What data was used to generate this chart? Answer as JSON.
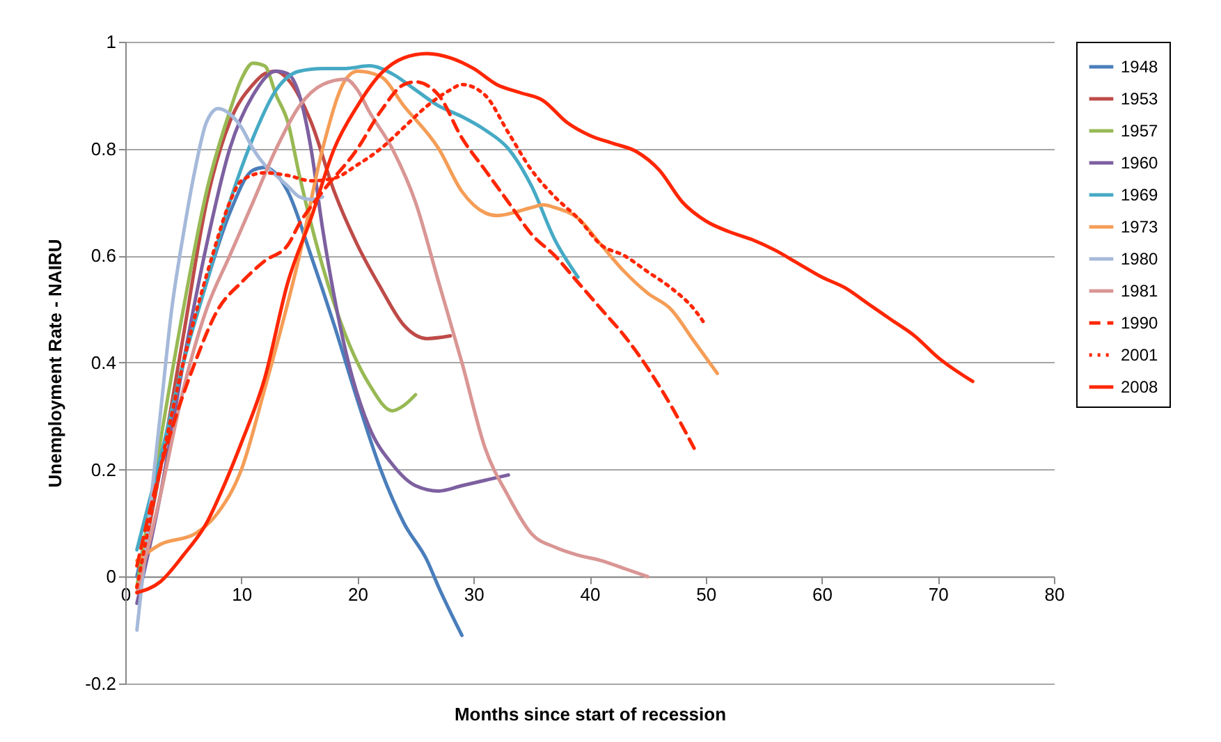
{
  "chart_data": {
    "type": "line",
    "xlabel": "Months since start of recession",
    "ylabel": "Unemployment Rate - NAIRU",
    "xlim": [
      0,
      80
    ],
    "xticks": [
      0,
      10,
      20,
      30,
      40,
      50,
      60,
      70,
      80
    ],
    "ylim": [
      -0.2,
      1
    ],
    "yticks": [
      -0.2,
      0,
      0.2,
      0.4,
      0.6,
      0.8,
      1
    ],
    "grid": "y",
    "legend": "right",
    "series": [
      {
        "name": "1948",
        "color": "#4a7ebb",
        "x": [
          1,
          3,
          5,
          7,
          9,
          11,
          12,
          14,
          16,
          18,
          20,
          22,
          24,
          26,
          27,
          29
        ],
        "values": [
          0.0,
          0.2,
          0.4,
          0.55,
          0.68,
          0.76,
          0.765,
          0.72,
          0.6,
          0.47,
          0.33,
          0.2,
          0.1,
          0.03,
          -0.02,
          -0.11
        ]
      },
      {
        "name": "1953",
        "color": "#be4b48",
        "x": [
          1,
          3,
          5,
          7,
          9,
          11,
          12,
          13,
          14,
          16,
          18,
          20,
          22,
          24,
          26,
          28
        ],
        "values": [
          -0.02,
          0.2,
          0.45,
          0.7,
          0.85,
          0.92,
          0.94,
          0.945,
          0.93,
          0.85,
          0.72,
          0.62,
          0.54,
          0.47,
          0.445,
          0.45
        ]
      },
      {
        "name": "1957",
        "color": "#98b954",
        "x": [
          1,
          3,
          5,
          7,
          9,
          10,
          11,
          12,
          13,
          14,
          15,
          16,
          17,
          19,
          21,
          23,
          24,
          25
        ],
        "values": [
          -0.02,
          0.25,
          0.5,
          0.72,
          0.87,
          0.93,
          0.96,
          0.955,
          0.9,
          0.85,
          0.75,
          0.66,
          0.58,
          0.45,
          0.36,
          0.31,
          0.32,
          0.34
        ]
      },
      {
        "name": "1960",
        "color": "#7d60a0",
        "x": [
          1,
          3,
          5,
          7,
          9,
          11,
          13,
          14,
          15,
          16,
          17,
          19,
          21,
          23,
          25,
          27,
          29,
          31,
          33
        ],
        "values": [
          -0.05,
          0.15,
          0.4,
          0.62,
          0.8,
          0.9,
          0.945,
          0.94,
          0.9,
          0.8,
          0.65,
          0.42,
          0.28,
          0.21,
          0.17,
          0.16,
          0.17,
          0.18,
          0.19
        ]
      },
      {
        "name": "1969",
        "color": "#46aac5",
        "x": [
          1,
          3,
          5,
          7,
          9,
          11,
          13,
          15,
          17,
          19,
          21,
          23,
          25,
          27,
          29,
          31,
          33,
          35,
          37,
          39
        ],
        "values": [
          0.05,
          0.22,
          0.4,
          0.55,
          0.7,
          0.82,
          0.91,
          0.945,
          0.95,
          0.95,
          0.955,
          0.94,
          0.91,
          0.88,
          0.86,
          0.835,
          0.8,
          0.73,
          0.63,
          0.56
        ]
      },
      {
        "name": "1973",
        "color": "#f59d56",
        "x": [
          1,
          3,
          6,
          8,
          10,
          12,
          15,
          17,
          19,
          20,
          22,
          24,
          27,
          29,
          31,
          32,
          35,
          36,
          37,
          39,
          41,
          43,
          45,
          47,
          49,
          51
        ],
        "values": [
          0.03,
          0.06,
          0.08,
          0.12,
          0.2,
          0.35,
          0.6,
          0.8,
          0.93,
          0.945,
          0.935,
          0.88,
          0.8,
          0.72,
          0.68,
          0.675,
          0.69,
          0.695,
          0.69,
          0.67,
          0.62,
          0.57,
          0.53,
          0.5,
          0.44,
          0.38
        ]
      },
      {
        "name": "1980",
        "color": "#a5b9da",
        "x": [
          1,
          2,
          3,
          4,
          5,
          6,
          7,
          8,
          9,
          10,
          11,
          12,
          13,
          14,
          15,
          16,
          17
        ],
        "values": [
          -0.1,
          0.1,
          0.3,
          0.5,
          0.64,
          0.76,
          0.85,
          0.875,
          0.865,
          0.84,
          0.8,
          0.77,
          0.75,
          0.73,
          0.71,
          0.705,
          0.71
        ]
      },
      {
        "name": "1981",
        "color": "#d99694",
        "x": [
          1,
          3,
          5,
          7,
          9,
          11,
          13,
          15,
          17,
          19,
          20,
          21,
          23,
          25,
          27,
          29,
          31,
          33,
          35,
          37,
          39,
          41,
          43,
          45
        ],
        "values": [
          -0.03,
          0.15,
          0.35,
          0.5,
          0.6,
          0.7,
          0.8,
          0.88,
          0.92,
          0.93,
          0.91,
          0.87,
          0.8,
          0.7,
          0.55,
          0.4,
          0.24,
          0.15,
          0.08,
          0.055,
          0.04,
          0.03,
          0.015,
          0
        ]
      },
      {
        "name": "1990",
        "color": "#ff2600",
        "line_style": "dashed",
        "x": [
          1,
          3,
          6,
          8,
          10,
          12,
          14,
          15,
          17,
          20,
          22,
          24,
          25,
          27,
          29,
          31,
          33,
          35,
          37,
          39,
          41,
          43,
          45,
          47,
          49
        ],
        "values": [
          0.02,
          0.2,
          0.4,
          0.5,
          0.55,
          0.59,
          0.62,
          0.66,
          0.72,
          0.8,
          0.87,
          0.92,
          0.925,
          0.9,
          0.82,
          0.76,
          0.7,
          0.64,
          0.6,
          0.55,
          0.5,
          0.45,
          0.39,
          0.32,
          0.24
        ]
      },
      {
        "name": "2001",
        "color": "#ff2600",
        "line_style": "dotted",
        "x": [
          1,
          3,
          5,
          7.5,
          9,
          10,
          12,
          14,
          16,
          18,
          20,
          22,
          24,
          26,
          28,
          29,
          31,
          33,
          35,
          37,
          39,
          41,
          43,
          45,
          47,
          49,
          50
        ],
        "values": [
          -0.02,
          0.2,
          0.4,
          0.6,
          0.7,
          0.74,
          0.755,
          0.75,
          0.74,
          0.745,
          0.77,
          0.8,
          0.84,
          0.88,
          0.91,
          0.92,
          0.9,
          0.83,
          0.76,
          0.71,
          0.67,
          0.62,
          0.6,
          0.57,
          0.54,
          0.5,
          0.47
        ]
      },
      {
        "name": "2008",
        "color": "#ff2600",
        "x": [
          1,
          3,
          5,
          7,
          8.5,
          10,
          12,
          14,
          16,
          18,
          20,
          22,
          24,
          26,
          28,
          30,
          32,
          34,
          36,
          38,
          40,
          42,
          44,
          46,
          48,
          50,
          52,
          54,
          56,
          58,
          60,
          62,
          64,
          66,
          68,
          70,
          73
        ],
        "values": [
          -0.03,
          -0.01,
          0.04,
          0.1,
          0.17,
          0.25,
          0.37,
          0.55,
          0.67,
          0.8,
          0.88,
          0.94,
          0.97,
          0.978,
          0.97,
          0.95,
          0.92,
          0.905,
          0.89,
          0.85,
          0.825,
          0.81,
          0.795,
          0.76,
          0.7,
          0.665,
          0.645,
          0.63,
          0.61,
          0.585,
          0.56,
          0.54,
          0.51,
          0.48,
          0.45,
          0.41,
          0.365
        ]
      }
    ]
  }
}
